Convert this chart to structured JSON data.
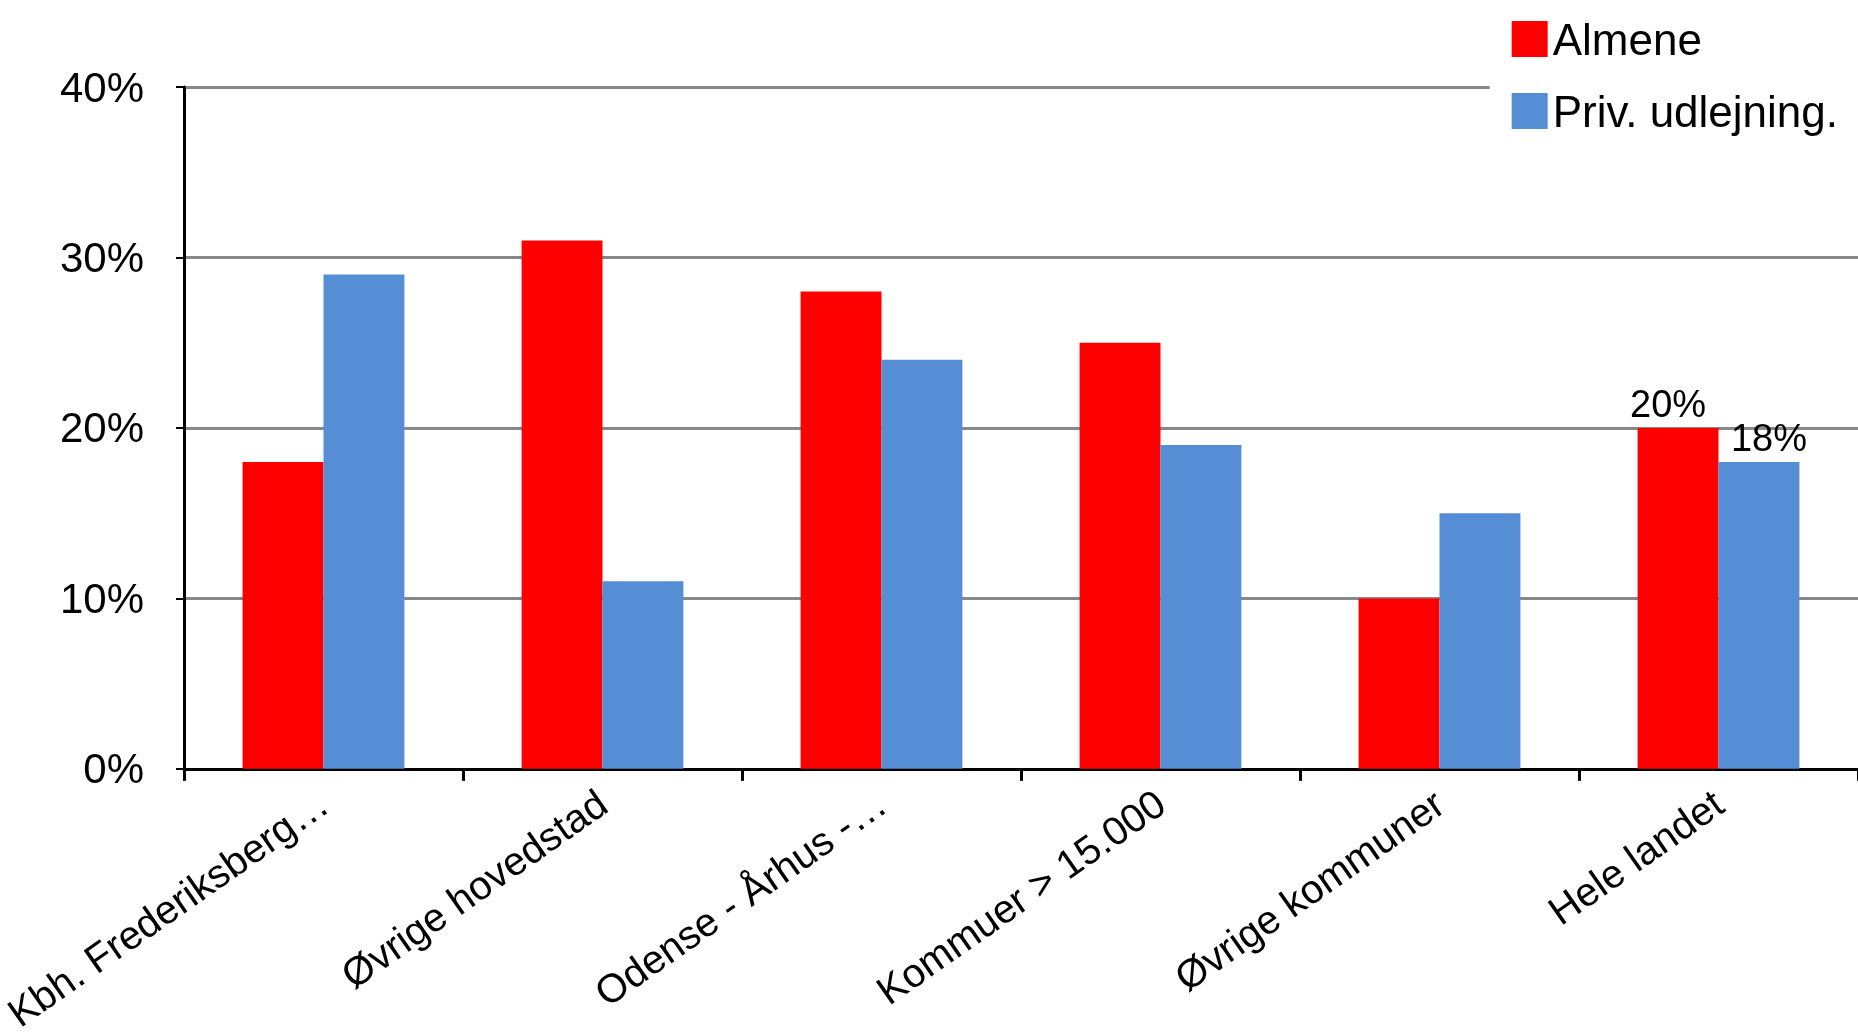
{
  "chart_data": {
    "type": "bar",
    "categories": [
      "Kbh. Frederiksberg…",
      "Øvrige hovedstad",
      "Odense - Århus -…",
      "Kommuer > 15.000",
      "Øvrige kommuner",
      "Hele landet"
    ],
    "series": [
      {
        "name": "Almene",
        "color": "#ff0000",
        "values": [
          18,
          31,
          28,
          25,
          10,
          20
        ],
        "value_labels": [
          null,
          null,
          null,
          null,
          null,
          "20%"
        ]
      },
      {
        "name": "Priv. udlejning.",
        "color": "#558ed5",
        "values": [
          29,
          11,
          24,
          19,
          15,
          18
        ],
        "value_labels": [
          null,
          null,
          null,
          null,
          null,
          "18%"
        ]
      }
    ],
    "ylim": [
      0,
      40
    ],
    "yticks": [
      {
        "value": 0,
        "label": "0%"
      },
      {
        "value": 10,
        "label": "10%"
      },
      {
        "value": 20,
        "label": "20%"
      },
      {
        "value": 30,
        "label": "30%"
      },
      {
        "value": 40,
        "label": "40%"
      }
    ],
    "grid": "y",
    "legend": "top right"
  }
}
